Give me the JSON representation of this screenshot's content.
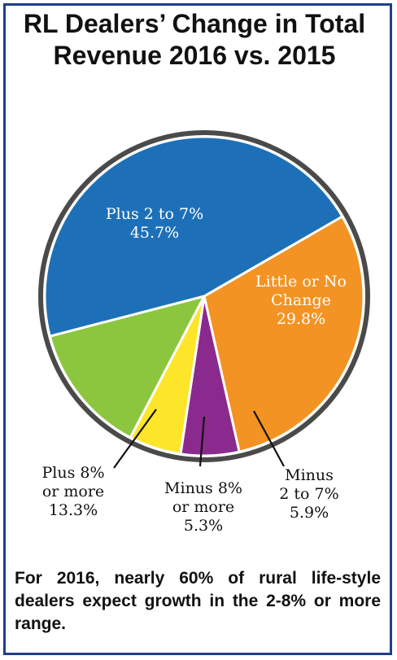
{
  "chart_data": {
    "type": "pie",
    "title": [
      "RL Dealers’ Change in Total",
      "Revenue 2016 vs. 2015"
    ],
    "slices": [
      {
        "label": [
          "Little or No",
          "Change"
        ],
        "value_label": "29.8%",
        "value": 29.8,
        "color": "#f39323"
      },
      {
        "label": [
          "Minus",
          "2 to 7%"
        ],
        "value_label": "5.9%",
        "value": 5.9,
        "color": "#8a2a8f"
      },
      {
        "label": [
          "Minus 8%",
          "or more"
        ],
        "value_label": "5.3%",
        "value": 5.3,
        "color": "#fde52a"
      },
      {
        "label": [
          "Plus 8%",
          "or more"
        ],
        "value_label": "13.3%",
        "value": 13.3,
        "color": "#8cc63f"
      },
      {
        "label": [
          "Plus 2 to 7%"
        ],
        "value_label": "45.7%",
        "value": 45.7,
        "color": "#1d70b8"
      }
    ]
  },
  "caption": "For 2016, nearly 60% of rural life-style dealers expect growth in the 2-8% or more range."
}
